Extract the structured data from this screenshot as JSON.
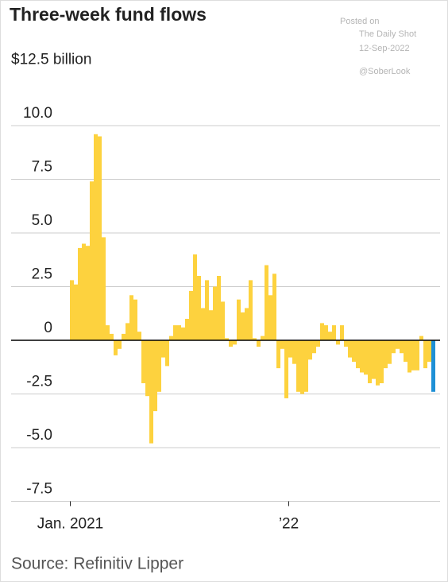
{
  "chart_data": {
    "type": "bar",
    "title": "Three-week fund flows",
    "annotations": [
      "Posted on",
      "The Daily Shot",
      "12-Sep-2022",
      "@SoberLook"
    ],
    "source": "Source: Refinitiv Lipper",
    "color": "#fdd23e",
    "last_color": "#1e90d6",
    "grid": true,
    "ylim": [
      -7.5,
      12.5
    ],
    "yticks": [
      -7.5,
      {
        "value": -5,
        "label": "-5.0"
      },
      -2.5,
      0,
      2.5,
      {
        "value": 5,
        "label": "5.0"
      },
      7.5,
      {
        "value": 10,
        "label": "10.0"
      },
      {
        "value": 12.5,
        "label": "$12.5 billion"
      }
    ],
    "categories": [
      "Jan. 2021",
      null,
      null,
      null,
      null,
      null,
      null,
      null,
      null,
      null,
      null,
      null,
      null,
      null,
      null,
      null,
      null,
      null,
      null,
      null,
      null,
      null,
      null,
      null,
      null,
      null,
      null,
      null,
      null,
      null,
      null,
      null,
      null,
      null,
      null,
      null,
      null,
      null,
      null,
      null,
      null,
      null,
      null,
      null,
      null,
      null,
      null,
      null,
      null,
      null,
      null,
      null,
      null,
      null,
      null,
      "’22",
      null,
      null,
      null,
      null,
      null,
      null,
      null,
      null,
      null,
      null,
      null,
      null,
      null,
      null,
      null,
      null,
      null,
      null,
      null,
      null,
      null,
      null,
      null,
      null,
      null,
      null,
      null,
      null,
      null,
      null,
      null,
      null,
      null,
      null,
      null,
      null
    ],
    "values": [
      2.8,
      2.6,
      4.3,
      4.5,
      4.4,
      7.4,
      9.6,
      9.5,
      4.8,
      0.7,
      0.3,
      -0.7,
      -0.4,
      0.3,
      0.8,
      2.1,
      1.9,
      0.4,
      -2.0,
      -2.6,
      -4.8,
      -3.3,
      -2.4,
      -0.8,
      -1.2,
      0.2,
      0.7,
      0.7,
      0.6,
      1.0,
      2.3,
      4.0,
      3.0,
      1.5,
      2.8,
      1.4,
      2.5,
      3.0,
      1.8,
      0.1,
      -0.3,
      -0.2,
      1.9,
      1.3,
      1.5,
      2.8,
      0.1,
      -0.3,
      0.2,
      3.5,
      2.1,
      3.1,
      -1.3,
      -0.4,
      -2.7,
      -0.8,
      -1.1,
      -2.4,
      -2.5,
      -2.4,
      -0.9,
      -0.6,
      -0.3,
      0.8,
      0.7,
      0.4,
      0.7,
      -0.2,
      0.7,
      -0.3,
      -0.8,
      -1.0,
      -1.3,
      -1.5,
      -1.6,
      -2.0,
      -1.8,
      -2.1,
      -2.0,
      -1.3,
      -1.1,
      -0.6,
      -0.4,
      -0.6,
      -1.0,
      -1.5,
      -1.4,
      -1.4,
      0.2,
      -1.3,
      -1.0,
      -2.4
    ]
  }
}
